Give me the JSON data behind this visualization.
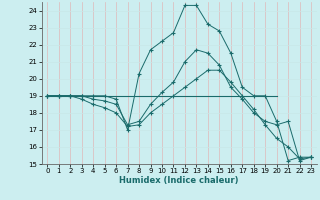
{
  "xlabel": "Humidex (Indice chaleur)",
  "bg_color": "#cceef0",
  "grid_color_v": "#e0b8b8",
  "grid_color_h": "#c8e8e8",
  "line_color": "#1a6b6b",
  "xlim": [
    -0.5,
    23.5
  ],
  "ylim": [
    15,
    24.5
  ],
  "xticks": [
    0,
    1,
    2,
    3,
    4,
    5,
    6,
    7,
    8,
    9,
    10,
    11,
    12,
    13,
    14,
    15,
    16,
    17,
    18,
    19,
    20,
    21,
    22,
    23
  ],
  "yticks": [
    15,
    16,
    17,
    18,
    19,
    20,
    21,
    22,
    23,
    24
  ],
  "series": [
    {
      "x": [
        0,
        1,
        2,
        3,
        4,
        5,
        6,
        7,
        8,
        9,
        10,
        11,
        12,
        13,
        14,
        15,
        16,
        17,
        18,
        19,
        20
      ],
      "y": [
        19,
        19,
        19,
        19,
        19,
        19,
        19,
        19,
        19,
        19,
        19,
        19,
        19,
        19,
        19,
        19,
        19,
        19,
        19,
        19,
        19
      ],
      "markers": false
    },
    {
      "x": [
        0,
        1,
        2,
        3,
        4,
        5,
        6,
        7,
        8,
        9,
        10,
        11,
        12,
        13,
        14,
        15,
        16,
        17,
        18,
        19,
        20,
        21,
        22,
        23
      ],
      "y": [
        19,
        19,
        19,
        19,
        19,
        19,
        18.8,
        17.0,
        20.3,
        21.7,
        22.2,
        22.7,
        24.3,
        24.3,
        23.2,
        22.8,
        21.5,
        19.5,
        19.0,
        19.0,
        17.5,
        15.2,
        15.4,
        15.4
      ],
      "markers": true
    },
    {
      "x": [
        0,
        1,
        2,
        3,
        4,
        5,
        6,
        7,
        8,
        9,
        10,
        11,
        12,
        13,
        14,
        15,
        16,
        17,
        18,
        19,
        20,
        21,
        22,
        23
      ],
      "y": [
        19,
        19,
        19,
        19,
        18.8,
        18.7,
        18.5,
        17.3,
        17.5,
        18.5,
        19.2,
        19.8,
        21.0,
        21.7,
        21.5,
        20.8,
        19.5,
        18.8,
        18.0,
        17.5,
        17.3,
        17.5,
        15.2,
        15.4
      ],
      "markers": true
    },
    {
      "x": [
        0,
        1,
        2,
        3,
        4,
        5,
        6,
        7,
        8,
        9,
        10,
        11,
        12,
        13,
        14,
        15,
        16,
        17,
        18,
        19,
        20,
        21,
        22,
        23
      ],
      "y": [
        19,
        19,
        19,
        18.8,
        18.5,
        18.3,
        18.0,
        17.2,
        17.3,
        18.0,
        18.5,
        19.0,
        19.5,
        20.0,
        20.5,
        20.5,
        19.8,
        19.0,
        18.2,
        17.3,
        16.5,
        16.0,
        15.3,
        15.4
      ],
      "markers": true
    }
  ]
}
